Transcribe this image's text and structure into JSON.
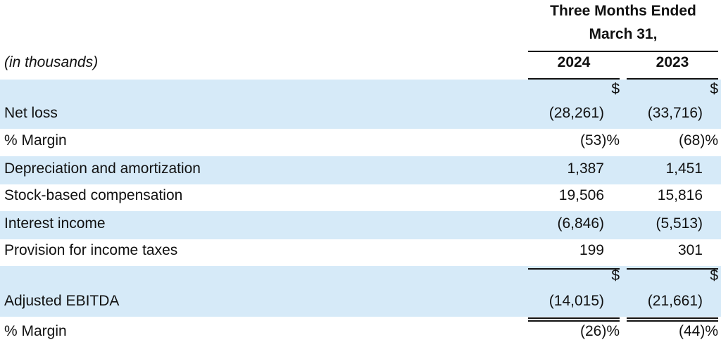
{
  "table": {
    "header": {
      "title": [
        "Three Months Ended",
        "March 31,"
      ],
      "unit": "(in thousands)",
      "columns": [
        "2024",
        "2023"
      ]
    },
    "rows": [
      {
        "label": "Net loss",
        "currency": [
          "$",
          "$"
        ],
        "values": [
          "(28,261)",
          "(33,716)"
        ]
      },
      {
        "label": "% Margin",
        "values": [
          "(53)%",
          "(68)%"
        ]
      },
      {
        "label": "Depreciation and amortization",
        "values": [
          "1,387",
          "1,451"
        ]
      },
      {
        "label": "Stock-based compensation",
        "values": [
          "19,506",
          "15,816"
        ]
      },
      {
        "label": "Interest income",
        "values": [
          "(6,846)",
          "(5,513)"
        ]
      },
      {
        "label": "Provision for income taxes",
        "values": [
          "199",
          "301"
        ]
      },
      {
        "label": "Adjusted EBITDA",
        "currency": [
          "$",
          "$"
        ],
        "values": [
          "(14,015)",
          "(21,661)"
        ]
      },
      {
        "label": "% Margin",
        "values": [
          "(26)%",
          "(44)%"
        ]
      }
    ]
  }
}
